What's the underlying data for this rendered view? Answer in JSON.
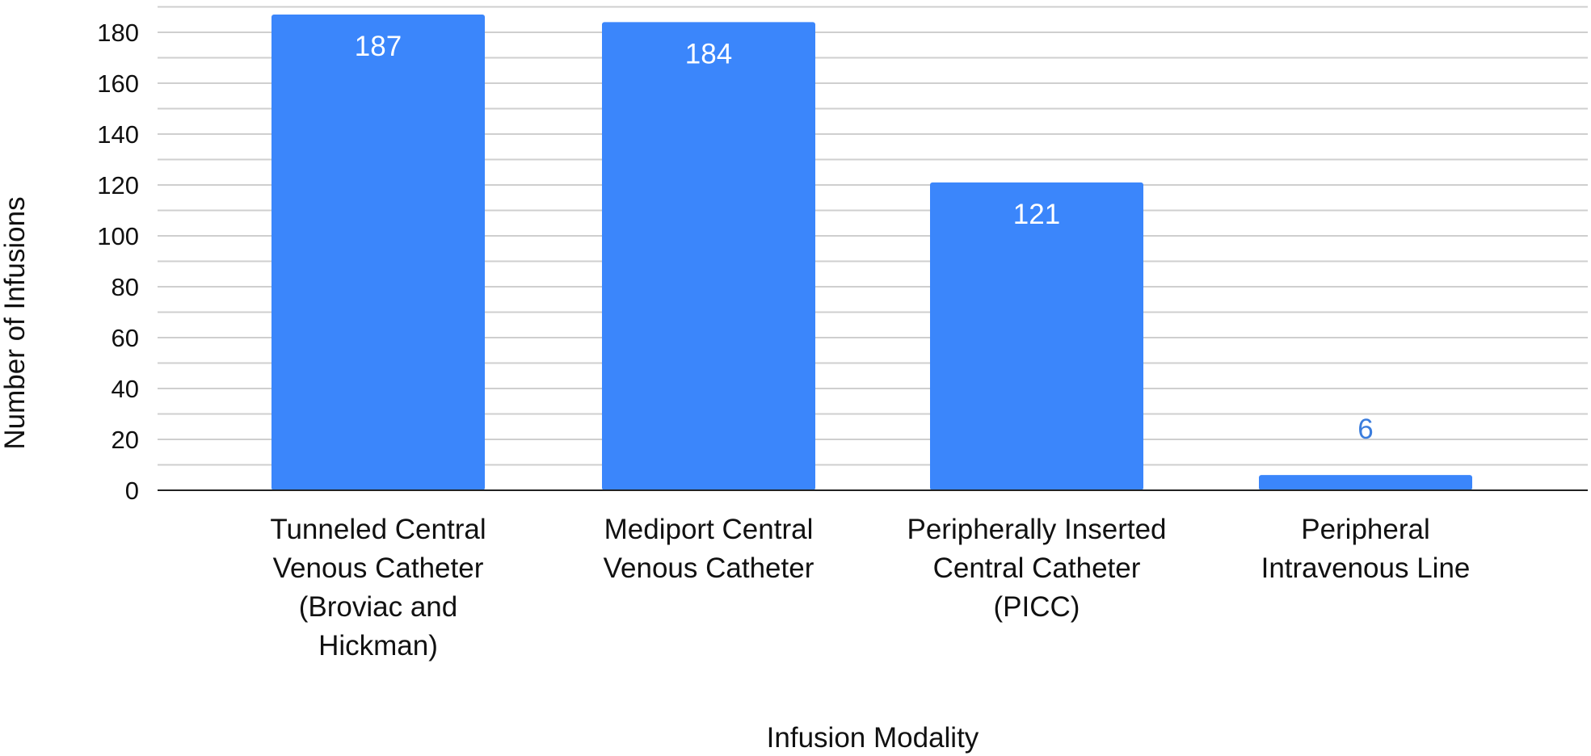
{
  "chart_data": {
    "type": "bar",
    "categories": [
      [
        "Tunneled Central",
        "Venous Catheter",
        "(Broviac and",
        "Hickman)"
      ],
      [
        "Mediport Central",
        "Venous Catheter"
      ],
      [
        "Peripherally Inserted",
        "Central Catheter",
        "(PICC)"
      ],
      [
        "Peripheral",
        "Intravenous Line"
      ]
    ],
    "values": [
      187,
      184,
      121,
      6
    ],
    "data_labels": [
      "187",
      "184",
      "121",
      "6"
    ],
    "yticks": [
      0,
      20,
      40,
      60,
      80,
      100,
      120,
      140,
      160,
      180
    ],
    "ylim": [
      0,
      190
    ],
    "minor_gridlines": true,
    "xlabel": "Infusion Modality",
    "ylabel": "Number of Infusions",
    "colors": {
      "bar": "#3b86fb",
      "label_inside": "#ffffff",
      "label_outside": "#3b7ddd",
      "grid": "#cfcfcf",
      "axis": "#222222"
    }
  }
}
